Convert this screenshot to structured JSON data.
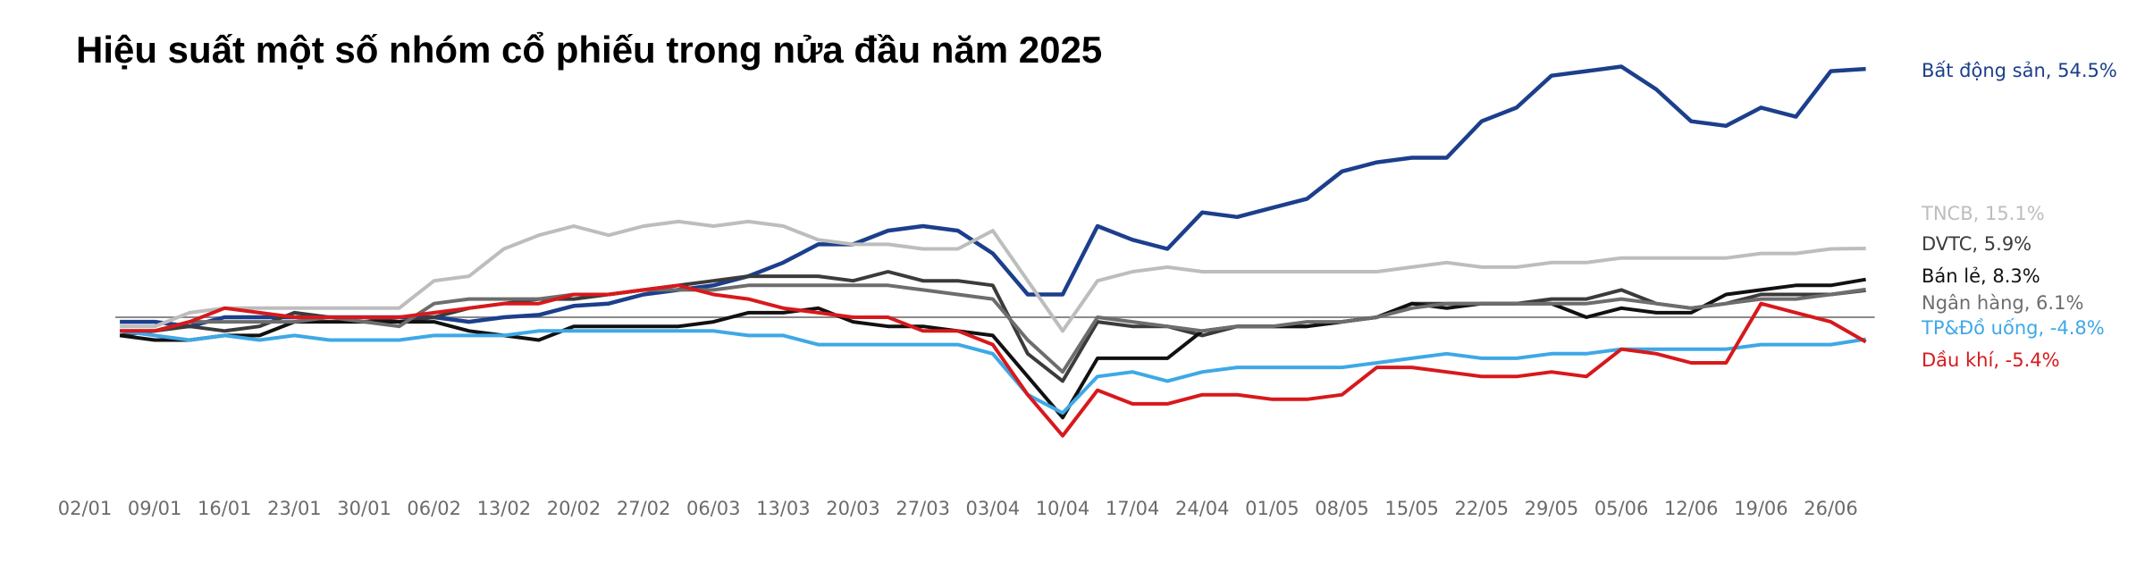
{
  "chart_data": {
    "type": "line",
    "title": "Hiệu suất một số nhóm cổ phiếu trong nửa đầu năm 2025",
    "categories": [
      "02/01",
      null,
      "09/01",
      null,
      "16/01",
      null,
      "23/01",
      null,
      "30/01",
      null,
      "06/02",
      null,
      "13/02",
      null,
      "20/02",
      null,
      "27/02",
      null,
      "06/03",
      null,
      "13/03",
      null,
      "20/03",
      null,
      "27/03",
      null,
      "03/04",
      null,
      "10/04",
      null,
      "17/04",
      null,
      "24/04",
      null,
      "01/05",
      null,
      "08/05",
      null,
      "15/05",
      null,
      "22/05",
      null,
      "29/05",
      null,
      "05/06",
      null,
      "12/06",
      null,
      "19/06",
      null,
      "26/06",
      null
    ],
    "ylim": [
      -30,
      60
    ],
    "series": [
      {
        "name": "Bất động sản, 54.5%",
        "color": "#1c3f8c",
        "values": [
          null,
          -1,
          -1,
          -2,
          0,
          0,
          0,
          0,
          0,
          0,
          0,
          -1,
          0,
          0.5,
          2.5,
          3,
          5,
          6,
          7,
          9,
          12,
          16,
          16,
          19,
          20,
          19,
          14,
          5,
          5,
          20,
          17,
          15,
          23,
          22,
          24,
          26,
          32,
          34,
          35,
          35,
          43,
          46,
          53,
          54,
          55,
          50,
          43,
          42,
          46,
          44,
          54,
          54.5
        ]
      },
      {
        "name": "TNCB, 15.1%",
        "color": "#bdbdbd",
        "values": [
          null,
          -2,
          -2,
          1,
          2,
          2,
          2,
          2,
          2,
          2,
          8,
          9,
          15,
          18,
          20,
          18,
          20,
          21,
          20,
          21,
          20,
          17,
          16,
          16,
          15,
          15,
          19,
          8,
          -3,
          8,
          10,
          11,
          10,
          10,
          10,
          10,
          10,
          10,
          11,
          12,
          11,
          11,
          12,
          12,
          13,
          13,
          13,
          13,
          14,
          14,
          15,
          15.1
        ]
      },
      {
        "name": "DVTC, 5.9%",
        "color": "#3b3b3b",
        "values": [
          null,
          -4,
          -3,
          -2,
          -3,
          -2,
          1,
          0,
          0,
          -1,
          0,
          2,
          3,
          4,
          4,
          5,
          6,
          7,
          8,
          9,
          9,
          9,
          8,
          10,
          8,
          8,
          7,
          -8,
          -14,
          -1,
          -2,
          -2,
          -4,
          -2,
          -2,
          -2,
          -1,
          0,
          3,
          3,
          3,
          3,
          4,
          4,
          6,
          3,
          2,
          3,
          5,
          5,
          5,
          5.9
        ]
      },
      {
        "name": "Bán lẻ, 8.3%",
        "color": "#111111",
        "values": [
          null,
          -4,
          -5,
          -5,
          -4,
          -4,
          -1,
          -1,
          -1,
          -1,
          -1,
          -3,
          -4,
          -5,
          -2,
          -2,
          -2,
          -2,
          -1,
          1,
          1,
          2,
          -1,
          -2,
          -2,
          -3,
          -4,
          -13,
          -22,
          -9,
          -9,
          -9,
          -3,
          -2,
          -2,
          -2,
          -1,
          0,
          3,
          2,
          3,
          3,
          3,
          0,
          2,
          1,
          1,
          5,
          6,
          7,
          7,
          8.3
        ]
      },
      {
        "name": "Ngân hàng, 6.1%",
        "color": "#6d6d6d",
        "values": [
          null,
          -3,
          -3,
          -1,
          -1,
          -1,
          -1,
          0,
          -1,
          -2,
          3,
          4,
          4,
          4,
          5,
          5,
          6,
          6,
          6,
          7,
          7,
          7,
          7,
          7,
          6,
          5,
          4,
          -5,
          -12,
          0,
          -1,
          -2,
          -3,
          -2,
          -2,
          -1,
          -1,
          0,
          2,
          3,
          3,
          3,
          3,
          3,
          4,
          3,
          2,
          3,
          4,
          4,
          5,
          6.1
        ]
      },
      {
        "name": "TP&Đồ uống, -4.8%",
        "color": "#3ea8e6",
        "values": [
          null,
          -3,
          -4,
          -5,
          -4,
          -5,
          -4,
          -5,
          -5,
          -5,
          -4,
          -4,
          -4,
          -3,
          -3,
          -3,
          -3,
          -3,
          -3,
          -4,
          -4,
          -6,
          -6,
          -6,
          -6,
          -6,
          -8,
          -17,
          -21,
          -13,
          -12,
          -14,
          -12,
          -11,
          -11,
          -11,
          -11,
          -10,
          -9,
          -8,
          -9,
          -9,
          -8,
          -8,
          -7,
          -7,
          -7,
          -7,
          -6,
          -6,
          -6,
          -4.8
        ]
      },
      {
        "name": "Dầu khí, -5.4%",
        "color": "#d7191c",
        "values": [
          null,
          -3,
          -3,
          -1,
          2,
          1,
          0,
          0,
          0,
          0,
          1,
          2,
          3,
          3,
          5,
          5,
          6,
          7,
          5,
          4,
          2,
          1,
          0,
          0,
          -3,
          -3,
          -6,
          -17,
          -26,
          -16,
          -19,
          -19,
          -17,
          -17,
          -18,
          -18,
          -17,
          -11,
          -11,
          -12,
          -13,
          -13,
          -12,
          -13,
          -7,
          -8,
          -10,
          -10,
          3,
          1,
          -1,
          -5.4
        ]
      }
    ]
  }
}
